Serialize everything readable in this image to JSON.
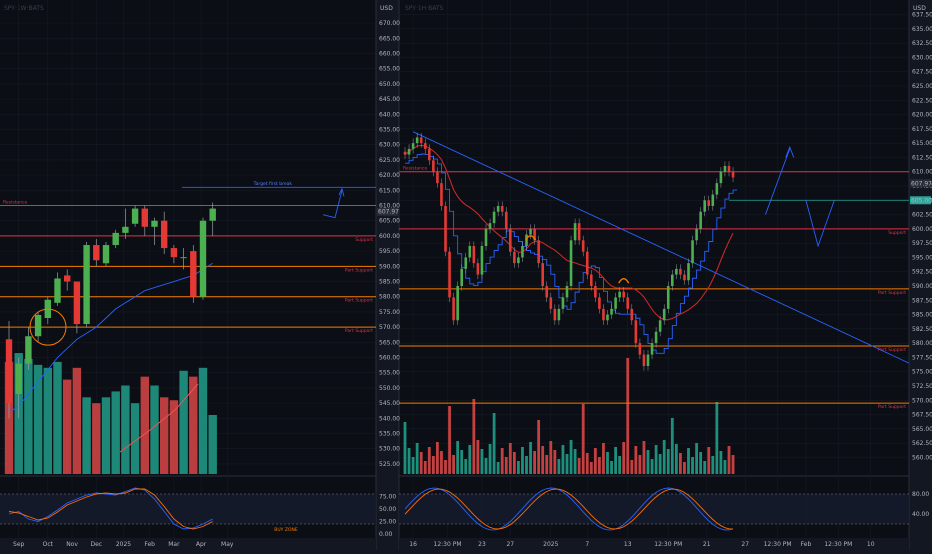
{
  "chart_data": [
    {
      "type": "candlestick",
      "currency": "USD",
      "y_ticks": [
        525,
        530,
        535,
        540,
        545,
        550,
        555,
        560,
        565,
        570,
        575,
        580,
        585,
        590,
        595,
        600,
        605,
        610,
        615,
        620,
        625,
        630,
        635,
        640,
        645,
        650,
        655,
        660,
        665,
        670
      ],
      "ylim": [
        523,
        673
      ],
      "last_price": "607.97",
      "x_ticks": [
        {
          "label": "Sep",
          "i": 1
        },
        {
          "label": "Oct",
          "i": 4
        },
        {
          "label": "Nov",
          "i": 6.5
        },
        {
          "label": "Dec",
          "i": 9
        },
        {
          "label": "2025",
          "i": 11.8
        },
        {
          "label": "Feb",
          "i": 14.5
        },
        {
          "label": "Mar",
          "i": 17
        },
        {
          "label": "Apr",
          "i": 19.8
        },
        {
          "label": "May",
          "i": 22.5
        }
      ],
      "candles": [
        {
          "o": 566,
          "h": 572,
          "l": 540,
          "c": 545
        },
        {
          "o": 548,
          "h": 560,
          "l": 540,
          "c": 558
        },
        {
          "o": 558,
          "h": 570,
          "l": 556,
          "c": 567
        },
        {
          "o": 567,
          "h": 575,
          "l": 565,
          "c": 574
        },
        {
          "o": 573,
          "h": 580,
          "l": 571,
          "c": 579
        },
        {
          "o": 578,
          "h": 588,
          "l": 577,
          "c": 586
        },
        {
          "o": 587,
          "h": 589,
          "l": 582,
          "c": 585
        },
        {
          "o": 585,
          "h": 585,
          "l": 568,
          "c": 571
        },
        {
          "o": 571,
          "h": 598,
          "l": 570,
          "c": 597
        },
        {
          "o": 597,
          "h": 599,
          "l": 590,
          "c": 592
        },
        {
          "o": 591,
          "h": 598,
          "l": 590,
          "c": 597
        },
        {
          "o": 597,
          "h": 602,
          "l": 596,
          "c": 601
        },
        {
          "o": 601,
          "h": 609,
          "l": 599,
          "c": 603
        },
        {
          "o": 604,
          "h": 610,
          "l": 603,
          "c": 609
        },
        {
          "o": 609,
          "h": 610,
          "l": 600,
          "c": 603
        },
        {
          "o": 603,
          "h": 606,
          "l": 597,
          "c": 605
        },
        {
          "o": 605,
          "h": 608,
          "l": 594,
          "c": 596
        },
        {
          "o": 596,
          "h": 597,
          "l": 591,
          "c": 593
        },
        {
          "o": 593,
          "h": 596,
          "l": 589,
          "c": 593
        },
        {
          "o": 595,
          "h": 597,
          "l": 578,
          "c": 580
        },
        {
          "o": 580,
          "h": 606,
          "l": 579,
          "c": 605
        },
        {
          "o": 605,
          "h": 611,
          "l": 600,
          "c": 609
        }
      ],
      "volume": [
        38,
        41,
        39,
        37,
        36,
        38,
        32,
        36,
        26,
        24,
        26,
        28,
        30,
        24,
        33,
        30,
        26,
        25,
        35,
        33,
        36,
        20
      ],
      "resistance": {
        "label": "Resistance",
        "value": 610
      },
      "support": {
        "label": "Support",
        "value": 600
      },
      "part_supports": [
        {
          "label": "Part Support",
          "value": 590
        },
        {
          "label": "Part Support",
          "value": 580
        },
        {
          "label": "Part Support",
          "value": 570
        }
      ],
      "upper_line_label": "Target first break",
      "stochastic_ticks": [
        "75.00",
        "50.00",
        "25.00",
        "0.00"
      ],
      "annotations": [
        "BUY ZONE"
      ]
    },
    {
      "type": "candlestick",
      "currency": "USD",
      "y_ticks": [
        560,
        562.5,
        565,
        567.5,
        570,
        572.5,
        575,
        577.5,
        580,
        582.5,
        585,
        587.5,
        590,
        592.5,
        595,
        597.5,
        600,
        602.5,
        605,
        607.5,
        610,
        612.5,
        615,
        617.5,
        620,
        622.5,
        625,
        627.5,
        630,
        632.5,
        635,
        637.5
      ],
      "ylim": [
        557.8,
        639
      ],
      "last_price": "607.97",
      "target_price": "605.00",
      "x_ticks": [
        {
          "label": "16",
          "i": 2
        },
        {
          "label": "12:30 PM",
          "i": 10.5
        },
        {
          "label": "23",
          "i": 19
        },
        {
          "label": "27",
          "i": 26
        },
        {
          "label": "2025",
          "i": 36
        },
        {
          "label": "7",
          "i": 45
        },
        {
          "label": "13",
          "i": 55
        },
        {
          "label": "12:30 PM",
          "i": 65
        },
        {
          "label": "21",
          "i": 74.5
        },
        {
          "label": "27",
          "i": 84
        },
        {
          "label": "12:30 PM",
          "i": 92
        },
        {
          "label": "Feb",
          "i": 99
        },
        {
          "label": "12:30 PM",
          "i": 107
        },
        {
          "label": "10",
          "i": 115
        }
      ],
      "resistance": {
        "label": "Resistance",
        "value": 610
      },
      "support": {
        "label": "Support",
        "value": 600
      },
      "part_supports": [
        {
          "label": "Part Support",
          "value": 589.5
        },
        {
          "label": "Part Support",
          "value": 579.5
        },
        {
          "label": "Part Support",
          "value": 569.5
        }
      ],
      "stochastic_ticks": [
        "80.00",
        "40.00"
      ]
    }
  ]
}
